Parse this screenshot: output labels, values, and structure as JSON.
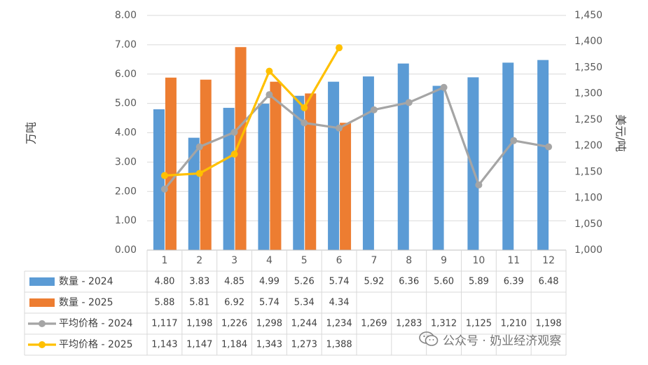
{
  "chart_data": {
    "type": "bar",
    "categories": [
      "1",
      "2",
      "3",
      "4",
      "5",
      "6",
      "7",
      "8",
      "9",
      "10",
      "11",
      "12"
    ],
    "y_left": {
      "label": "万吨",
      "ylim": [
        0,
        8
      ],
      "ticks": [
        "0.00",
        "1.00",
        "2.00",
        "3.00",
        "4.00",
        "5.00",
        "6.00",
        "7.00",
        "8.00"
      ]
    },
    "y_right": {
      "label": "美元/吨",
      "ylim": [
        1000,
        1450
      ],
      "ticks": [
        "1,000",
        "1,050",
        "1,100",
        "1,150",
        "1,200",
        "1,250",
        "1,300",
        "1,350",
        "1,400",
        "1,450"
      ]
    },
    "grid": true,
    "series": [
      {
        "name": "数量 - 2024",
        "type": "bar",
        "axis": "left",
        "color": "#5B9BD5",
        "values": [
          4.8,
          3.83,
          4.85,
          4.99,
          5.26,
          5.74,
          5.92,
          6.36,
          5.6,
          5.89,
          6.39,
          6.48
        ],
        "labels": [
          "4.80",
          "3.83",
          "4.85",
          "4.99",
          "5.26",
          "5.74",
          "5.92",
          "6.36",
          "5.60",
          "5.89",
          "6.39",
          "6.48"
        ]
      },
      {
        "name": "数量 - 2025",
        "type": "bar",
        "axis": "left",
        "color": "#ED7D31",
        "values": [
          5.88,
          5.81,
          6.92,
          5.74,
          5.34,
          4.34,
          null,
          null,
          null,
          null,
          null,
          null
        ],
        "labels": [
          "5.88",
          "5.81",
          "6.92",
          "5.74",
          "5.34",
          "4.34",
          "",
          "",
          "",
          "",
          "",
          ""
        ]
      },
      {
        "name": "平均价格 - 2024",
        "type": "line",
        "axis": "right",
        "color": "#A5A5A5",
        "values": [
          1117,
          1198,
          1226,
          1298,
          1244,
          1234,
          1269,
          1283,
          1312,
          1125,
          1210,
          1198
        ],
        "labels": [
          "1,117",
          "1,198",
          "1,226",
          "1,298",
          "1,244",
          "1,234",
          "1,269",
          "1,283",
          "1,312",
          "1,125",
          "1,210",
          "1,198"
        ]
      },
      {
        "name": "平均价格 - 2025",
        "type": "line",
        "axis": "right",
        "color": "#FFC000",
        "values": [
          1143,
          1147,
          1184,
          1343,
          1273,
          1388,
          null,
          null,
          null,
          null,
          null,
          null
        ],
        "labels": [
          "1,143",
          "1,147",
          "1,184",
          "1,343",
          "1,273",
          "1,388",
          "",
          "",
          "",
          "",
          "",
          ""
        ]
      }
    ]
  },
  "watermark": {
    "text": "公众号 · 奶业经济观察",
    "icon": "wechat-icon"
  }
}
